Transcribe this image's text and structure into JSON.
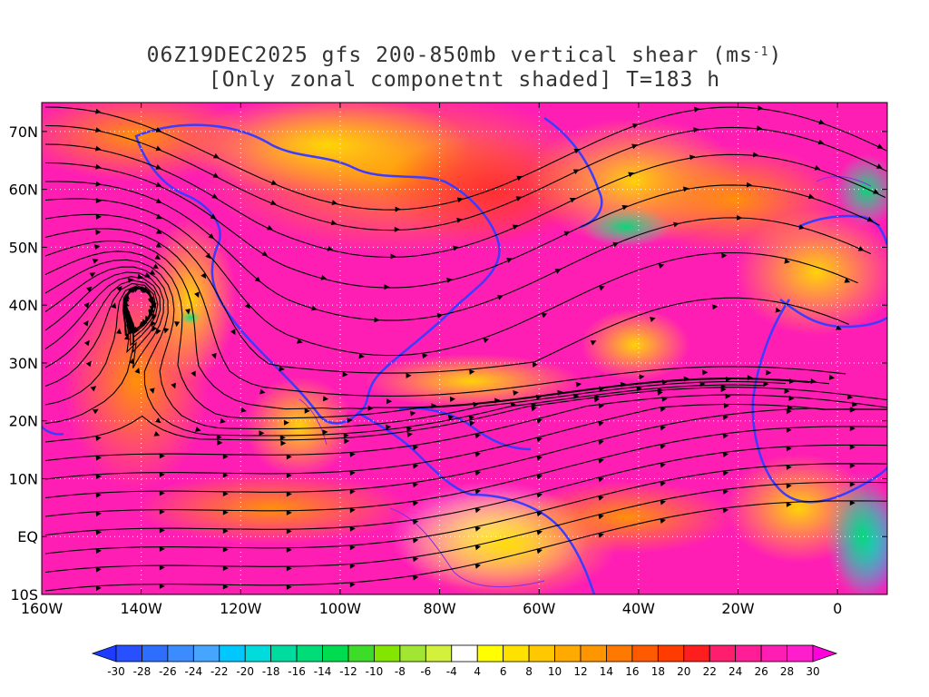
{
  "title": {
    "line1_prefix": "06Z19DEC2025 gfs 200-850mb vertical shear (ms",
    "line1_sup": "-1",
    "line1_suffix": ")",
    "line2": "[Only zonal componetnt shaded] T=183 h"
  },
  "map": {
    "lon_range": [
      -160,
      10
    ],
    "lat_range": [
      -10,
      75
    ],
    "lat_ticks": [
      {
        "value": 70,
        "label": "70N"
      },
      {
        "value": 60,
        "label": "60N"
      },
      {
        "value": 50,
        "label": "50N"
      },
      {
        "value": 40,
        "label": "40N"
      },
      {
        "value": 30,
        "label": "30N"
      },
      {
        "value": 20,
        "label": "20N"
      },
      {
        "value": 10,
        "label": "10N"
      },
      {
        "value": 0,
        "label": "EQ"
      },
      {
        "value": -10,
        "label": "10S"
      }
    ],
    "lon_ticks": [
      {
        "value": -160,
        "label": "160W"
      },
      {
        "value": -140,
        "label": "140W"
      },
      {
        "value": -120,
        "label": "120W"
      },
      {
        "value": -100,
        "label": "100W"
      },
      {
        "value": -80,
        "label": "80W"
      },
      {
        "value": -60,
        "label": "60W"
      },
      {
        "value": -40,
        "label": "40W"
      },
      {
        "value": -20,
        "label": "20W"
      },
      {
        "value": 0,
        "label": "0"
      }
    ],
    "grid_style": "dotted",
    "coastline_color": "#3c3cff",
    "streamline_color": "#000000"
  },
  "colorbar": {
    "labels": [
      "-30",
      "-28",
      "-26",
      "-24",
      "-22",
      "-20",
      "-18",
      "-16",
      "-14",
      "-12",
      "-10",
      "-8",
      "-6",
      "-4",
      "4",
      "6",
      "8",
      "10",
      "12",
      "14",
      "16",
      "18",
      "20",
      "22",
      "24",
      "26",
      "28",
      "30"
    ],
    "colors": [
      "#1e3cff",
      "#2850ff",
      "#2d6eff",
      "#3c8cff",
      "#46a5ff",
      "#00c8ff",
      "#00dcdc",
      "#00dca0",
      "#00dc78",
      "#00dc50",
      "#3cdc28",
      "#82e600",
      "#a0e632",
      "#d2f03c",
      "#ffffff",
      "#ffff00",
      "#ffe100",
      "#ffc800",
      "#ffaa00",
      "#ff9600",
      "#ff7800",
      "#ff5a00",
      "#ff3c00",
      "#ff1e1e",
      "#ff1e6e",
      "#ff1e96",
      "#ff1eb4",
      "#ff1ecc",
      "#ff00dc"
    ]
  }
}
